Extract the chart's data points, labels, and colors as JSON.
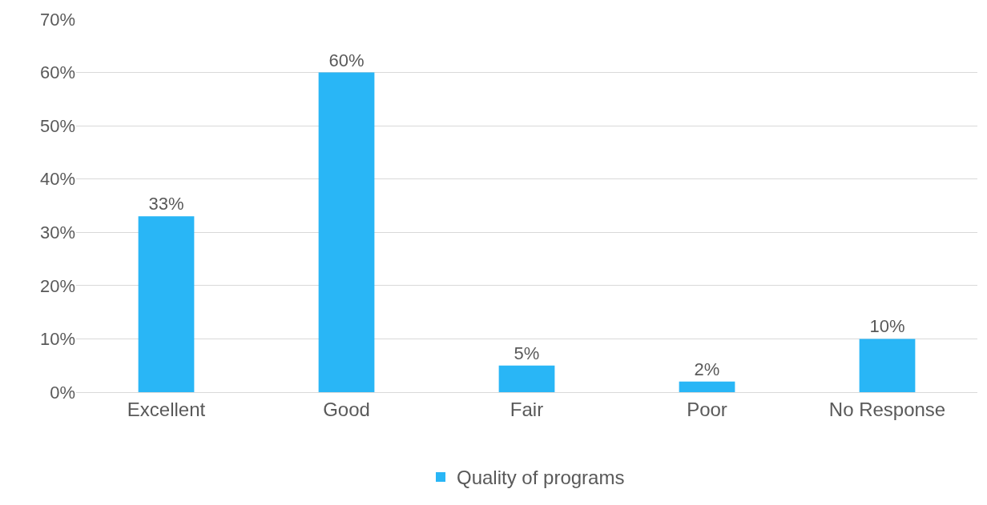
{
  "chart_data": {
    "type": "bar",
    "categories": [
      "Excellent",
      "Good",
      "Fair",
      "Poor",
      "No Response"
    ],
    "series": [
      {
        "name": "Quality of programs",
        "color": "#29b6f6",
        "values": [
          33,
          60,
          5,
          2,
          10
        ],
        "value_labels": [
          "33%",
          "60%",
          "5%",
          "2%",
          "10%"
        ]
      }
    ],
    "ylim": [
      0,
      70
    ],
    "yticks": [
      {
        "value": 0,
        "label": "0%"
      },
      {
        "value": 10,
        "label": "10%"
      },
      {
        "value": 20,
        "label": "20%"
      },
      {
        "value": 30,
        "label": "30%"
      },
      {
        "value": 40,
        "label": "40%"
      },
      {
        "value": 50,
        "label": "50%"
      },
      {
        "value": 60,
        "label": "60%"
      },
      {
        "value": 70,
        "label": "70%"
      }
    ],
    "grid": "y",
    "legend": "bottom"
  }
}
